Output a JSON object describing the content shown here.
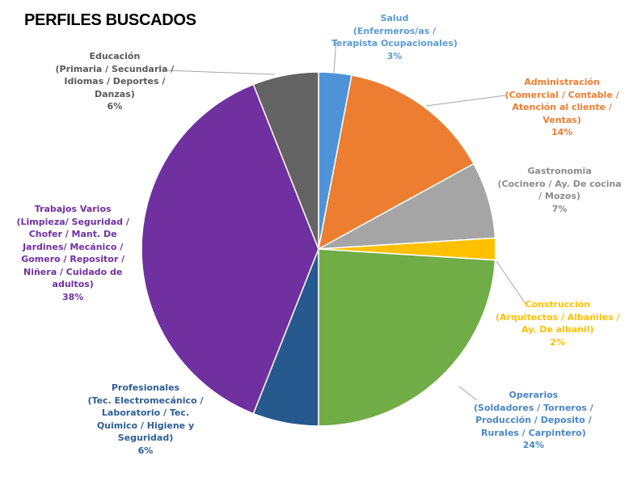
{
  "chart_data": {
    "type": "pie",
    "title": "PERFILES BUSCADOS",
    "slices": [
      {
        "name": "Salud\n(Enfermeros/as /\nTerapista Ocupacionales)",
        "value": 3,
        "pct": "3%",
        "color": "#4E93D8",
        "label_color": "#5B9BD5"
      },
      {
        "name": "Administración\n(Comercial / Contable /\nAtención al cliente /\nVentas)",
        "value": 14,
        "pct": "14%",
        "color": "#ED7D31",
        "label_color": "#ED7D31"
      },
      {
        "name": "Gastronomia\n(Cocinero / Ay. De cocina\n/ Mozos)",
        "value": 7,
        "pct": "7%",
        "color": "#A5A5A5",
        "label_color": "#8C8C8C"
      },
      {
        "name": "Construcción\n(Arquitectos / Albañiles /\nAy. De albañil)",
        "value": 2,
        "pct": "2%",
        "color": "#FFC000",
        "label_color": "#FFC000"
      },
      {
        "name": "Operarios\n(Soldadores / Torneros /\nProducción / Deposito /\nRurales / Carpintero)",
        "value": 24,
        "pct": "24%",
        "color": "#70AD47",
        "label_color": "#4A86C5"
      },
      {
        "name": "Profesionales\n(Tec. Electromecánico /\nLaboratorio / Tec.\nQuimico / Higiene y\nSeguridad)",
        "value": 6,
        "pct": "6%",
        "color": "#265A8F",
        "label_color": "#2E5E93"
      },
      {
        "name": "Trabajos Varios\n(Limpieza/ Seguridad /\nChofer / Mant. De\nJardines/ Mecánico /\nGomero / Repositor /\nNiñera / Cuidado de\nadultos)",
        "value": 38,
        "pct": "38%",
        "color": "#7030A0",
        "label_color": "#7030A0"
      },
      {
        "name": "Educación\n(Primaria / Secundaria /\nIdiomas / Deportes /\nDanzas)",
        "value": 6,
        "pct": "6%",
        "color": "#636363",
        "label_color": "#595959"
      }
    ]
  }
}
